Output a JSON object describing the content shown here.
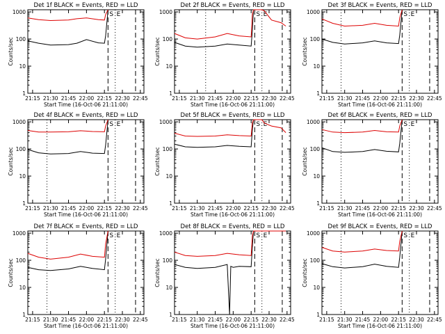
{
  "figure": {
    "colors": {
      "events": "#000000",
      "lld": "#dd0000",
      "axes": "#000000",
      "background": "#ffffff"
    }
  },
  "chart_data": [
    {
      "type": "line",
      "title": "Det 1f BLACK = Events, RED = LLD",
      "xlabel": "Start Time (16-Oct-06 21:11:00)",
      "ylabel": "Counts/sec",
      "yscale": "log",
      "ylim": [
        1,
        1200
      ],
      "xlim": [
        "21:11",
        "22:48"
      ],
      "x_ticks": [
        "21:15",
        "21:30",
        "21:45",
        "22:00",
        "22:15",
        "22:30",
        "22:45"
      ],
      "y_ticks": [
        "1",
        "10",
        "100",
        "1000"
      ],
      "markers": [
        {
          "time": "22:18",
          "style": "dashed",
          "label": "S"
        },
        {
          "time": "22:24",
          "style": "dotted",
          "label": "E"
        },
        {
          "time": "22:41",
          "style": "dashed",
          "label": ""
        }
      ],
      "series": [
        {
          "name": "Events",
          "color": "black",
          "x": [
            "21:11",
            "21:20",
            "21:30",
            "21:45",
            "21:52",
            "22:00",
            "22:10",
            "22:15",
            "22:16",
            "22:18"
          ],
          "values": [
            85,
            70,
            60,
            62,
            70,
            95,
            72,
            70,
            130,
            1200
          ]
        },
        {
          "name": "LLD",
          "color": "red",
          "x": [
            "21:11",
            "21:20",
            "21:30",
            "21:45",
            "21:52",
            "22:00",
            "22:10",
            "22:15",
            "22:16",
            "22:18"
          ],
          "values": [
            600,
            520,
            480,
            500,
            560,
            600,
            520,
            500,
            800,
            1200
          ]
        }
      ]
    },
    {
      "type": "line",
      "title": "Det 2f BLACK = Events, RED = LLD",
      "xlabel": "Start Time (16-Oct-06 21:11:00)",
      "ylabel": "Counts/sec",
      "yscale": "log",
      "ylim": [
        1,
        1200
      ],
      "xlim": [
        "21:11",
        "22:48"
      ],
      "x_ticks": [
        "21:15",
        "21:30",
        "21:45",
        "22:00",
        "22:15",
        "22:30",
        "22:45"
      ],
      "y_ticks": [
        "1",
        "10",
        "100",
        "1000"
      ],
      "markers": [
        {
          "time": "21:37",
          "style": "dotted",
          "label": ""
        },
        {
          "time": "22:18",
          "style": "dashed",
          "label": "S"
        },
        {
          "time": "22:24",
          "style": "dotted",
          "label": "E"
        },
        {
          "time": "22:41",
          "style": "dashed",
          "label": ""
        }
      ],
      "series": [
        {
          "name": "Events",
          "color": "black",
          "x": [
            "21:11",
            "21:20",
            "21:30",
            "21:45",
            "21:55",
            "22:05",
            "22:15",
            "22:16",
            "22:17"
          ],
          "values": [
            75,
            55,
            50,
            55,
            65,
            60,
            55,
            200,
            1200
          ]
        },
        {
          "name": "LLD",
          "color": "red",
          "x": [
            "21:11",
            "21:20",
            "21:30",
            "21:45",
            "21:55",
            "22:05",
            "22:15",
            "22:16",
            "22:17",
            "22:24",
            "22:26",
            "22:32",
            "22:40",
            "22:44"
          ],
          "values": [
            160,
            110,
            100,
            120,
            160,
            130,
            120,
            800,
            1200,
            1200,
            1100,
            500,
            400,
            300
          ]
        }
      ]
    },
    {
      "type": "line",
      "title": "Det 3f BLACK = Events, RED = LLD",
      "xlabel": "Start Time (16-Oct-06 21:11:00)",
      "ylabel": "Counts/sec",
      "yscale": "log",
      "ylim": [
        1,
        1200
      ],
      "xlim": [
        "21:11",
        "22:48"
      ],
      "x_ticks": [
        "21:15",
        "21:30",
        "21:45",
        "22:00",
        "22:15",
        "22:30",
        "22:45"
      ],
      "y_ticks": [
        "1",
        "10",
        "100",
        "1000"
      ],
      "markers": [
        {
          "time": "21:27",
          "style": "dotted",
          "label": ""
        },
        {
          "time": "22:18",
          "style": "dashed",
          "label": "S"
        },
        {
          "time": "22:24",
          "style": "dotted",
          "label": "E"
        },
        {
          "time": "22:41",
          "style": "dashed",
          "label": ""
        }
      ],
      "series": [
        {
          "name": "Events",
          "color": "black",
          "x": [
            "21:11",
            "21:20",
            "21:30",
            "21:45",
            "21:55",
            "22:05",
            "22:15",
            "22:16",
            "22:18"
          ],
          "values": [
            100,
            75,
            65,
            72,
            85,
            72,
            68,
            140,
            1200
          ]
        },
        {
          "name": "LLD",
          "color": "red",
          "x": [
            "21:11",
            "21:20",
            "21:30",
            "21:45",
            "21:55",
            "22:05",
            "22:15",
            "22:16",
            "22:18"
          ],
          "values": [
            550,
            380,
            300,
            320,
            380,
            320,
            300,
            600,
            1200
          ]
        }
      ]
    },
    {
      "type": "line",
      "title": "Det 4f BLACK = Events, RED = LLD",
      "xlabel": "Start Time (16-Oct-06 21:11:00)",
      "ylabel": "Counts/sec",
      "yscale": "log",
      "ylim": [
        1,
        1200
      ],
      "xlim": [
        "21:11",
        "22:48"
      ],
      "x_ticks": [
        "21:15",
        "21:30",
        "21:45",
        "22:00",
        "22:15",
        "22:30",
        "22:45"
      ],
      "y_ticks": [
        "1",
        "10",
        "100",
        "1000"
      ],
      "markers": [
        {
          "time": "21:27",
          "style": "dotted",
          "label": ""
        },
        {
          "time": "22:18",
          "style": "dashed",
          "label": "S"
        },
        {
          "time": "22:24",
          "style": "dotted",
          "label": "E"
        },
        {
          "time": "22:41",
          "style": "dashed",
          "label": ""
        }
      ],
      "series": [
        {
          "name": "Events",
          "color": "black",
          "x": [
            "21:11",
            "21:20",
            "21:30",
            "21:45",
            "21:55",
            "22:05",
            "22:15",
            "22:16",
            "22:18"
          ],
          "values": [
            95,
            72,
            65,
            68,
            80,
            70,
            68,
            140,
            1200
          ]
        },
        {
          "name": "LLD",
          "color": "red",
          "x": [
            "21:11",
            "21:20",
            "21:30",
            "21:45",
            "21:55",
            "22:05",
            "22:15",
            "22:16",
            "22:18"
          ],
          "values": [
            480,
            420,
            420,
            430,
            470,
            440,
            430,
            700,
            1200
          ]
        }
      ]
    },
    {
      "type": "line",
      "title": "Det 5f BLACK = Events, RED = LLD",
      "xlabel": "Start Time (16-Oct-06 21:11:00)",
      "ylabel": "Counts/sec",
      "yscale": "log",
      "ylim": [
        1,
        1200
      ],
      "xlim": [
        "21:11",
        "22:48"
      ],
      "x_ticks": [
        "21:15",
        "21:30",
        "21:45",
        "22:00",
        "22:15",
        "22:30",
        "22:45"
      ],
      "y_ticks": [
        "1",
        "10",
        "100",
        "1000"
      ],
      "markers": [
        {
          "time": "22:18",
          "style": "dashed",
          "label": "S"
        },
        {
          "time": "22:24",
          "style": "dotted",
          "label": "E"
        },
        {
          "time": "22:41",
          "style": "dashed",
          "label": ""
        }
      ],
      "series": [
        {
          "name": "Events",
          "color": "black",
          "x": [
            "21:11",
            "21:20",
            "21:30",
            "21:45",
            "21:55",
            "22:05",
            "22:15",
            "22:16",
            "22:17"
          ],
          "values": [
            150,
            120,
            115,
            120,
            135,
            125,
            120,
            500,
            1200
          ]
        },
        {
          "name": "LLD",
          "color": "red",
          "x": [
            "21:11",
            "21:20",
            "21:30",
            "21:45",
            "21:55",
            "22:05",
            "22:15",
            "22:16",
            "22:17",
            "22:24",
            "22:26",
            "22:32",
            "22:40",
            "22:44"
          ],
          "values": [
            380,
            300,
            290,
            300,
            330,
            310,
            300,
            900,
            1200,
            1200,
            900,
            700,
            600,
            400
          ]
        }
      ]
    },
    {
      "type": "line",
      "title": "Det 6f BLACK = Events, RED = LLD",
      "xlabel": "Start Time (16-Oct-06 21:11:00)",
      "ylabel": "Counts/sec",
      "yscale": "log",
      "ylim": [
        1,
        1200
      ],
      "xlim": [
        "21:11",
        "22:48"
      ],
      "x_ticks": [
        "21:15",
        "21:30",
        "21:45",
        "22:00",
        "22:15",
        "22:30",
        "22:45"
      ],
      "y_ticks": [
        "1",
        "10",
        "100",
        "1000"
      ],
      "markers": [
        {
          "time": "21:27",
          "style": "dotted",
          "label": ""
        },
        {
          "time": "22:18",
          "style": "dashed",
          "label": "S"
        },
        {
          "time": "22:24",
          "style": "dotted",
          "label": "E"
        },
        {
          "time": "22:41",
          "style": "dashed",
          "label": ""
        }
      ],
      "series": [
        {
          "name": "Events",
          "color": "black",
          "x": [
            "21:11",
            "21:20",
            "21:30",
            "21:45",
            "21:55",
            "22:05",
            "22:15",
            "22:16",
            "22:18"
          ],
          "values": [
            110,
            80,
            75,
            80,
            95,
            82,
            78,
            160,
            1200
          ]
        },
        {
          "name": "LLD",
          "color": "red",
          "x": [
            "21:11",
            "21:20",
            "21:30",
            "21:45",
            "21:55",
            "22:05",
            "22:15",
            "22:16",
            "22:18"
          ],
          "values": [
            520,
            420,
            400,
            420,
            480,
            430,
            420,
            700,
            1200
          ]
        }
      ]
    },
    {
      "type": "line",
      "title": "Det 7f BLACK = Events, RED = LLD",
      "xlabel": "Start Time (16-Oct-06 21:11:00)",
      "ylabel": "Counts/sec",
      "yscale": "log",
      "ylim": [
        1,
        1200
      ],
      "xlim": [
        "21:11",
        "22:48"
      ],
      "x_ticks": [
        "21:15",
        "21:30",
        "21:45",
        "22:00",
        "22:15",
        "22:30",
        "22:45"
      ],
      "y_ticks": [
        "1",
        "10",
        "100",
        "1000"
      ],
      "markers": [
        {
          "time": "21:27",
          "style": "dotted",
          "label": ""
        },
        {
          "time": "22:18",
          "style": "dashed",
          "label": "S"
        },
        {
          "time": "22:24",
          "style": "dotted",
          "label": "E"
        },
        {
          "time": "22:41",
          "style": "dashed",
          "label": ""
        }
      ],
      "series": [
        {
          "name": "Events",
          "color": "black",
          "x": [
            "21:11",
            "21:20",
            "21:30",
            "21:45",
            "21:55",
            "22:05",
            "22:15",
            "22:16",
            "22:18"
          ],
          "values": [
            55,
            45,
            42,
            48,
            60,
            50,
            45,
            110,
            1200
          ]
        },
        {
          "name": "LLD",
          "color": "red",
          "x": [
            "21:11",
            "21:20",
            "21:30",
            "21:45",
            "21:55",
            "22:05",
            "22:15",
            "22:16",
            "22:18"
          ],
          "values": [
            180,
            130,
            110,
            130,
            170,
            140,
            130,
            400,
            1200
          ]
        }
      ]
    },
    {
      "type": "line",
      "title": "Det 8f BLACK = Events, RED = LLD",
      "xlabel": "Start Time (16-Oct-06 21:11:00)",
      "ylabel": "Counts/sec",
      "yscale": "log",
      "ylim": [
        1,
        1200
      ],
      "xlim": [
        "21:11",
        "22:48"
      ],
      "x_ticks": [
        "21:15",
        "21:30",
        "21:45",
        "22:00",
        "22:15",
        "22:30",
        "22:45"
      ],
      "y_ticks": [
        "1",
        "10",
        "100",
        "1000"
      ],
      "markers": [
        {
          "time": "22:18",
          "style": "dashed",
          "label": "S"
        },
        {
          "time": "22:24",
          "style": "dotted",
          "label": "E"
        },
        {
          "time": "22:41",
          "style": "dashed",
          "label": ""
        }
      ],
      "series": [
        {
          "name": "Events",
          "color": "black",
          "x": [
            "21:11",
            "21:20",
            "21:30",
            "21:45",
            "21:55",
            "21:57",
            "21:58",
            "22:00",
            "22:05",
            "22:15",
            "22:16",
            "22:17"
          ],
          "values": [
            70,
            55,
            50,
            55,
            70,
            1,
            60,
            55,
            60,
            58,
            300,
            1200
          ]
        },
        {
          "name": "LLD",
          "color": "red",
          "x": [
            "21:11",
            "21:20",
            "21:30",
            "21:45",
            "21:55",
            "22:05",
            "22:15",
            "22:16",
            "22:17",
            "22:24",
            "22:32",
            "22:40",
            "22:44"
          ],
          "values": [
            200,
            150,
            140,
            150,
            180,
            160,
            150,
            800,
            1200,
            1200,
            1200,
            1200,
            1200
          ]
        }
      ]
    },
    {
      "type": "line",
      "title": "Det 9f BLACK = Events, RED = LLD",
      "xlabel": "Start Time (16-Oct-06 21:11:00)",
      "ylabel": "Counts/sec",
      "yscale": "log",
      "ylim": [
        1,
        1200
      ],
      "xlim": [
        "21:11",
        "22:48"
      ],
      "x_ticks": [
        "21:15",
        "21:30",
        "21:45",
        "22:00",
        "22:15",
        "22:30",
        "22:45"
      ],
      "y_ticks": [
        "1",
        "10",
        "100",
        "1000"
      ],
      "markers": [
        {
          "time": "21:27",
          "style": "dotted",
          "label": ""
        },
        {
          "time": "22:18",
          "style": "dashed",
          "label": "S"
        },
        {
          "time": "22:24",
          "style": "dotted",
          "label": "E"
        },
        {
          "time": "22:41",
          "style": "dashed",
          "label": ""
        }
      ],
      "series": [
        {
          "name": "Events",
          "color": "black",
          "x": [
            "21:11",
            "21:20",
            "21:30",
            "21:45",
            "21:55",
            "22:05",
            "22:15",
            "22:16",
            "22:18"
          ],
          "values": [
            75,
            58,
            52,
            58,
            72,
            60,
            55,
            130,
            1200
          ]
        },
        {
          "name": "LLD",
          "color": "red",
          "x": [
            "21:11",
            "21:20",
            "21:30",
            "21:45",
            "21:55",
            "22:05",
            "22:15",
            "22:16",
            "22:18"
          ],
          "values": [
            300,
            220,
            200,
            220,
            260,
            230,
            220,
            500,
            1200
          ]
        }
      ]
    }
  ]
}
